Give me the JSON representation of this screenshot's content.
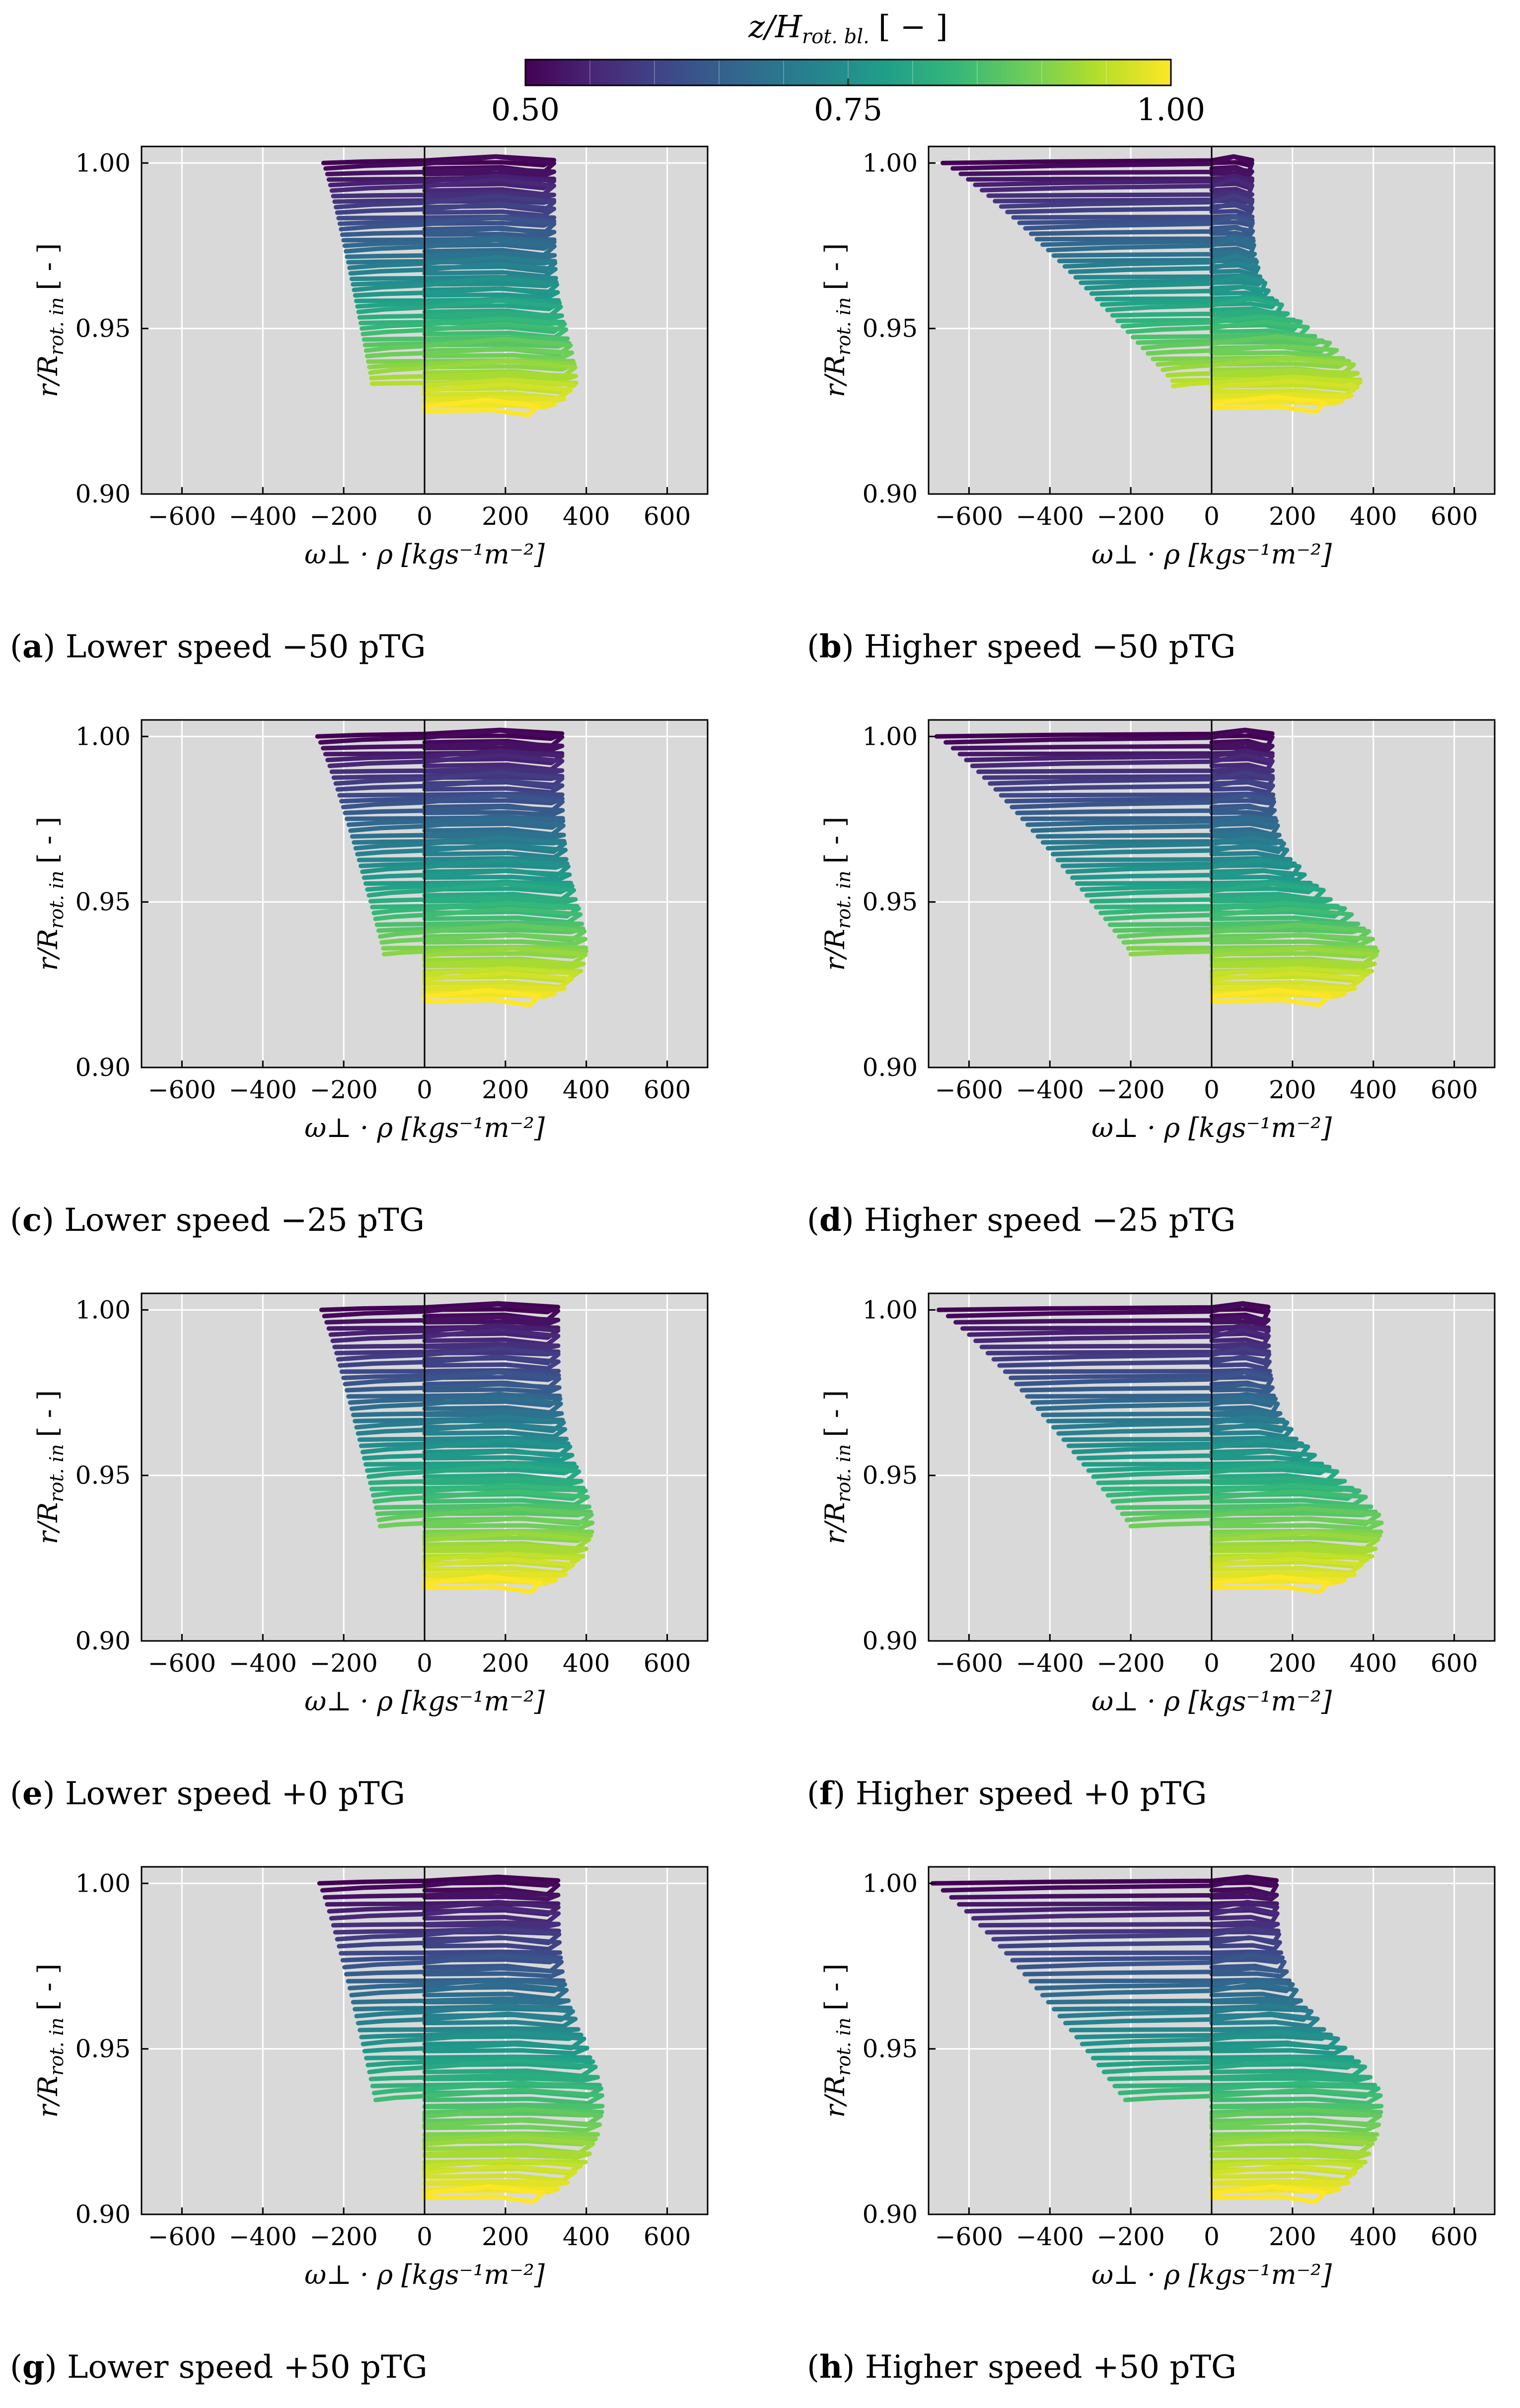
{
  "colorbar": {
    "label": "z/H",
    "label_sub": "rot. bl.",
    "label_unit": "[ − ]",
    "ticks": [
      "0.50",
      "0.75",
      "1.00"
    ],
    "tick_values": [
      0.5,
      0.75,
      1.0
    ],
    "range": [
      0.5,
      1.0
    ],
    "colormap": "viridis"
  },
  "colors": {
    "panel_bg": "#d9d9d9",
    "grid": "#ffffff",
    "viridis_stops": [
      "#440154",
      "#482878",
      "#3e4989",
      "#31688e",
      "#26828e",
      "#1f9e89",
      "#35b779",
      "#6ece58",
      "#b5de2b",
      "#fde725"
    ]
  },
  "chart_data": [
    {
      "id": "a",
      "type": "line",
      "caption_letter": "a",
      "caption_text": "Lower speed −50 pTG",
      "xlabel": "ω⊥ · ρ [kgs⁻¹m⁻²]",
      "ylabel": "r/R",
      "ylabel_sub": "rot. in",
      "ylabel_unit": "[ - ]",
      "xlim": [
        -700,
        700
      ],
      "ylim": [
        0.9,
        1.005
      ],
      "xticks": [
        -600,
        -400,
        -200,
        0,
        200,
        400,
        600
      ],
      "xtick_labels": [
        "−600",
        "−400",
        "−200",
        "0",
        "200",
        "400",
        "600"
      ],
      "yticks": [
        0.9,
        0.95,
        1.0
      ],
      "ytick_labels": [
        "0.90",
        "0.95",
        "1.00"
      ],
      "profile": {
        "r_top": 1.0,
        "r_bottom": 0.925,
        "r_split": 0.934,
        "xmin_top": -250,
        "xmin_split": -130,
        "xmax": 375,
        "x_bulge_top": 320
      }
    },
    {
      "id": "b",
      "type": "line",
      "caption_letter": "b",
      "caption_text": "Higher speed −50 pTG",
      "xlabel": "ω⊥ · ρ [kgs⁻¹m⁻²]",
      "ylabel": "r/R",
      "ylabel_sub": "rot. in",
      "ylabel_unit": "[ - ]",
      "xlim": [
        -700,
        700
      ],
      "ylim": [
        0.9,
        1.005
      ],
      "xticks": [
        -600,
        -400,
        -200,
        0,
        200,
        400,
        600
      ],
      "xtick_labels": [
        "−600",
        "−400",
        "−200",
        "0",
        "200",
        "400",
        "600"
      ],
      "yticks": [
        0.9,
        0.95,
        1.0
      ],
      "ytick_labels": [
        "0.90",
        "0.95",
        "1.00"
      ],
      "profile": {
        "r_top": 1.0,
        "r_bottom": 0.926,
        "r_split": 0.934,
        "xmin_top": -665,
        "xmin_split": -95,
        "xmax": 370,
        "x_bulge_top": 100
      }
    },
    {
      "id": "c",
      "type": "line",
      "caption_letter": "c",
      "caption_text": "Lower speed −25 pTG",
      "xlabel": "ω⊥ · ρ [kgs⁻¹m⁻²]",
      "ylabel": "r/R",
      "ylabel_sub": "rot. in",
      "ylabel_unit": "[ - ]",
      "xlim": [
        -700,
        700
      ],
      "ylim": [
        0.9,
        1.005
      ],
      "xticks": [
        -600,
        -400,
        -200,
        0,
        200,
        400,
        600
      ],
      "xtick_labels": [
        "−600",
        "−400",
        "−200",
        "0",
        "200",
        "400",
        "600"
      ],
      "yticks": [
        0.9,
        0.95,
        1.0
      ],
      "ytick_labels": [
        "0.90",
        "0.95",
        "1.00"
      ],
      "profile": {
        "r_top": 1.0,
        "r_bottom": 0.92,
        "r_split": 0.935,
        "xmin_top": -265,
        "xmin_split": -100,
        "xmax": 400,
        "x_bulge_top": 340
      }
    },
    {
      "id": "d",
      "type": "line",
      "caption_letter": "d",
      "caption_text": "Higher speed −25 pTG",
      "xlabel": "ω⊥ · ρ [kgs⁻¹m⁻²]",
      "ylabel": "r/R",
      "ylabel_sub": "rot. in",
      "ylabel_unit": "[ - ]",
      "xlim": [
        -700,
        700
      ],
      "ylim": [
        0.9,
        1.005
      ],
      "xticks": [
        -600,
        -400,
        -200,
        0,
        200,
        400,
        600
      ],
      "xtick_labels": [
        "−600",
        "−400",
        "−200",
        "0",
        "200",
        "400",
        "600"
      ],
      "yticks": [
        0.9,
        0.95,
        1.0
      ],
      "ytick_labels": [
        "0.90",
        "0.95",
        "1.00"
      ],
      "profile": {
        "r_top": 1.0,
        "r_bottom": 0.92,
        "r_split": 0.935,
        "xmin_top": -680,
        "xmin_split": -200,
        "xmax": 410,
        "x_bulge_top": 150
      }
    },
    {
      "id": "e",
      "type": "line",
      "caption_letter": "e",
      "caption_text": "Lower speed +0 pTG",
      "xlabel": "ω⊥ · ρ [kgs⁻¹m⁻²]",
      "ylabel": "r/R",
      "ylabel_sub": "rot. in",
      "ylabel_unit": "[ - ]",
      "xlim": [
        -700,
        700
      ],
      "ylim": [
        0.9,
        1.005
      ],
      "xticks": [
        -600,
        -400,
        -200,
        0,
        200,
        400,
        600
      ],
      "xtick_labels": [
        "−600",
        "−400",
        "−200",
        "0",
        "200",
        "400",
        "600"
      ],
      "yticks": [
        0.9,
        0.95,
        1.0
      ],
      "ytick_labels": [
        "0.90",
        "0.95",
        "1.00"
      ],
      "profile": {
        "r_top": 1.0,
        "r_bottom": 0.916,
        "r_split": 0.935,
        "xmin_top": -255,
        "xmin_split": -110,
        "xmax": 415,
        "x_bulge_top": 330
      }
    },
    {
      "id": "f",
      "type": "line",
      "caption_letter": "f",
      "caption_text": "Higher speed +0 pTG",
      "xlabel": "ω⊥ · ρ [kgs⁻¹m⁻²]",
      "ylabel": "r/R",
      "ylabel_sub": "rot. in",
      "ylabel_unit": "[ - ]",
      "xlim": [
        -700,
        700
      ],
      "ylim": [
        0.9,
        1.005
      ],
      "xticks": [
        -600,
        -400,
        -200,
        0,
        200,
        400,
        600
      ],
      "xtick_labels": [
        "−600",
        "−400",
        "−200",
        "0",
        "200",
        "400",
        "600"
      ],
      "yticks": [
        0.9,
        0.95,
        1.0
      ],
      "ytick_labels": [
        "0.90",
        "0.95",
        "1.00"
      ],
      "profile": {
        "r_top": 1.0,
        "r_bottom": 0.916,
        "r_split": 0.935,
        "xmin_top": -675,
        "xmin_split": -200,
        "xmax": 420,
        "x_bulge_top": 140
      }
    },
    {
      "id": "g",
      "type": "line",
      "caption_letter": "g",
      "caption_text": "Lower speed +50 pTG",
      "xlabel": "ω⊥ · ρ [kgs⁻¹m⁻²]",
      "ylabel": "r/R",
      "ylabel_sub": "rot. in",
      "ylabel_unit": "[ - ]",
      "xlim": [
        -700,
        700
      ],
      "ylim": [
        0.9,
        1.005
      ],
      "xticks": [
        -600,
        -400,
        -200,
        0,
        200,
        400,
        600
      ],
      "xtick_labels": [
        "−600",
        "−400",
        "−200",
        "0",
        "200",
        "400",
        "600"
      ],
      "yticks": [
        0.9,
        0.95,
        1.0
      ],
      "ytick_labels": [
        "0.90",
        "0.95",
        "1.00"
      ],
      "profile": {
        "r_top": 1.0,
        "r_bottom": 0.905,
        "r_split": 0.934,
        "xmin_top": -260,
        "xmin_split": -120,
        "xmax": 440,
        "x_bulge_top": 330
      }
    },
    {
      "id": "h",
      "type": "line",
      "caption_letter": "h",
      "caption_text": "Higher speed +50 pTG",
      "xlabel": "ω⊥ · ρ [kgs⁻¹m⁻²]",
      "ylabel": "r/R",
      "ylabel_sub": "rot. in",
      "ylabel_unit": "[ - ]",
      "xlim": [
        -700,
        700
      ],
      "ylim": [
        0.9,
        1.005
      ],
      "xticks": [
        -600,
        -400,
        -200,
        0,
        200,
        400,
        600
      ],
      "xtick_labels": [
        "−600",
        "−400",
        "−200",
        "0",
        "200",
        "400",
        "600"
      ],
      "yticks": [
        0.9,
        0.95,
        1.0
      ],
      "ytick_labels": [
        "0.90",
        "0.95",
        "1.00"
      ],
      "profile": {
        "r_top": 1.0,
        "r_bottom": 0.905,
        "r_split": 0.934,
        "xmin_top": -690,
        "xmin_split": -210,
        "xmax": 420,
        "x_bulge_top": 160
      }
    }
  ]
}
